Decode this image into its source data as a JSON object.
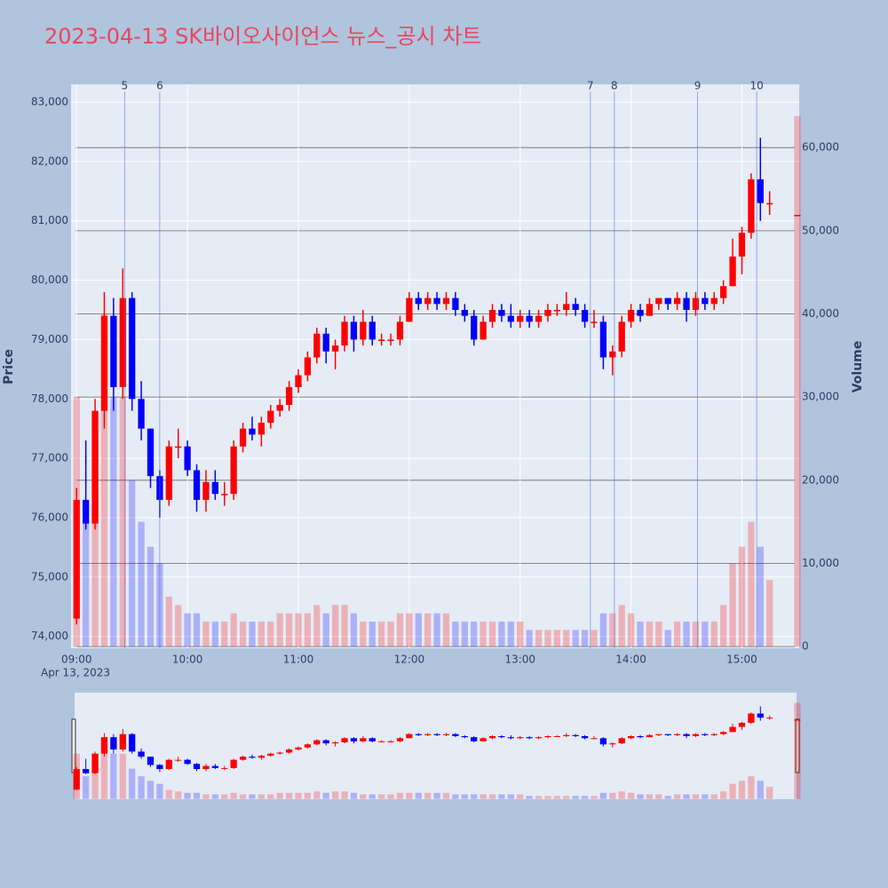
{
  "chart_data": {
    "type": "candlestick",
    "title": "2023-04-13 SK바이오사이언스 뉴스_공시 차트",
    "y_label": "Price",
    "y2_label": "Volume",
    "x_date_label": "Apr 13, 2023",
    "up_color": "#ff0000",
    "down_color": "#0000ff",
    "xlim": [
      "2023-04-13 08:57",
      "2023-04-13 15:31"
    ],
    "xticks": [
      {
        "value": "2023-04-13 09:00",
        "label": "09:00"
      },
      {
        "value": "2023-04-13 10:00",
        "label": "10:00"
      },
      {
        "value": "2023-04-13 11:00",
        "label": "11:00"
      },
      {
        "value": "2023-04-13 12:00",
        "label": "12:00"
      },
      {
        "value": "2023-04-13 13:00",
        "label": "13:00"
      },
      {
        "value": "2023-04-13 14:00",
        "label": "14:00"
      },
      {
        "value": "2023-04-13 15:00",
        "label": "15:00"
      }
    ],
    "ylim": [
      73800,
      83300
    ],
    "yticks": [
      {
        "value": 74000,
        "label": "74,000"
      },
      {
        "value": 75000,
        "label": "75,000"
      },
      {
        "value": 76000,
        "label": "76,000"
      },
      {
        "value": 77000,
        "label": "77,000"
      },
      {
        "value": 78000,
        "label": "78,000"
      },
      {
        "value": 79000,
        "label": "79,000"
      },
      {
        "value": 80000,
        "label": "80,000"
      },
      {
        "value": 81000,
        "label": "81,000"
      },
      {
        "value": 82000,
        "label": "82,000"
      },
      {
        "value": 83000,
        "label": "83,000"
      }
    ],
    "y2lim": [
      -200,
      67600
    ],
    "y2ticks": [
      0,
      {
        "value": 10000,
        "label": "10,000"
      },
      {
        "value": 20000,
        "label": "20,000"
      },
      {
        "value": 30000,
        "label": "30,000"
      },
      {
        "value": 40000,
        "label": "40,000"
      },
      {
        "value": 50000,
        "label": "50,000"
      },
      {
        "value": 60000,
        "label": "60,000"
      }
    ],
    "markers": [
      {
        "label": "5",
        "x": "2023-04-13 09:26"
      },
      {
        "label": "6",
        "x": "2023-04-13 09:45"
      },
      {
        "label": "7",
        "x": "2023-04-13 13:38"
      },
      {
        "label": "8",
        "x": "2023-04-13 13:51"
      },
      {
        "label": "9",
        "x": "2023-04-13 14:36"
      },
      {
        "label": "10",
        "x": "2023-04-13 15:08"
      }
    ],
    "x": [
      "2023-04-13 09:00",
      "2023-04-13 09:05",
      "2023-04-13 09:10",
      "2023-04-13 09:15",
      "2023-04-13 09:20",
      "2023-04-13 09:25",
      "2023-04-13 09:30",
      "2023-04-13 09:35",
      "2023-04-13 09:40",
      "2023-04-13 09:45",
      "2023-04-13 09:50",
      "2023-04-13 09:55",
      "2023-04-13 10:00",
      "2023-04-13 10:05",
      "2023-04-13 10:10",
      "2023-04-13 10:15",
      "2023-04-13 10:20",
      "2023-04-13 10:25",
      "2023-04-13 10:30",
      "2023-04-13 10:35",
      "2023-04-13 10:40",
      "2023-04-13 10:45",
      "2023-04-13 10:50",
      "2023-04-13 10:55",
      "2023-04-13 11:00",
      "2023-04-13 11:05",
      "2023-04-13 11:10",
      "2023-04-13 11:15",
      "2023-04-13 11:20",
      "2023-04-13 11:25",
      "2023-04-13 11:30",
      "2023-04-13 11:35",
      "2023-04-13 11:40",
      "2023-04-13 11:45",
      "2023-04-13 11:50",
      "2023-04-13 11:55",
      "2023-04-13 12:00",
      "2023-04-13 12:05",
      "2023-04-13 12:10",
      "2023-04-13 12:15",
      "2023-04-13 12:20",
      "2023-04-13 12:25",
      "2023-04-13 12:30",
      "2023-04-13 12:35",
      "2023-04-13 12:40",
      "2023-04-13 12:45",
      "2023-04-13 12:50",
      "2023-04-13 12:55",
      "2023-04-13 13:00",
      "2023-04-13 13:05",
      "2023-04-13 13:10",
      "2023-04-13 13:15",
      "2023-04-13 13:20",
      "2023-04-13 13:25",
      "2023-04-13 13:30",
      "2023-04-13 13:35",
      "2023-04-13 13:40",
      "2023-04-13 13:45",
      "2023-04-13 13:50",
      "2023-04-13 13:55",
      "2023-04-13 14:00",
      "2023-04-13 14:05",
      "2023-04-13 14:10",
      "2023-04-13 14:15",
      "2023-04-13 14:20",
      "2023-04-13 14:25",
      "2023-04-13 14:30",
      "2023-04-13 14:35",
      "2023-04-13 14:40",
      "2023-04-13 14:45",
      "2023-04-13 14:50",
      "2023-04-13 14:55",
      "2023-04-13 15:00",
      "2023-04-13 15:05",
      "2023-04-13 15:10",
      "2023-04-13 15:15",
      "2023-04-13 15:30"
    ],
    "open": [
      74300,
      76300,
      75900,
      77800,
      79400,
      78200,
      79700,
      78000,
      77500,
      76700,
      76300,
      77200,
      77200,
      76800,
      76300,
      76600,
      76400,
      76400,
      77200,
      77500,
      77400,
      77600,
      77800,
      77900,
      78200,
      78400,
      78700,
      79100,
      78800,
      78900,
      79300,
      79000,
      79300,
      79000,
      79000,
      79000,
      79300,
      79700,
      79600,
      79700,
      79600,
      79700,
      79500,
      79400,
      79000,
      79300,
      79500,
      79400,
      79300,
      79400,
      79300,
      79400,
      79500,
      79500,
      79600,
      79500,
      79300,
      79300,
      78700,
      78800,
      79300,
      79500,
      79400,
      79600,
      79700,
      79600,
      79700,
      79500,
      79700,
      79600,
      79700,
      79900,
      80400,
      80800,
      81700,
      81300,
      81100
    ],
    "high": [
      76500,
      77300,
      78000,
      79800,
      79700,
      80200,
      79800,
      78300,
      77500,
      76800,
      77300,
      77500,
      77300,
      76900,
      76800,
      76800,
      76600,
      77300,
      77600,
      77700,
      77700,
      77900,
      78000,
      78300,
      78500,
      78800,
      79200,
      79200,
      79000,
      79400,
      79400,
      79500,
      79400,
      79100,
      79100,
      79400,
      79800,
      79800,
      79800,
      79800,
      79800,
      79800,
      79600,
      79500,
      79400,
      79600,
      79600,
      79600,
      79500,
      79500,
      79500,
      79600,
      79600,
      79800,
      79700,
      79600,
      79500,
      79400,
      78900,
      79400,
      79600,
      79600,
      79700,
      79700,
      79700,
      79800,
      79800,
      79800,
      79800,
      79800,
      80000,
      80700,
      80900,
      81800,
      82400,
      81500,
      81100
    ],
    "low": [
      74200,
      75800,
      75800,
      77500,
      77800,
      78000,
      77800,
      77300,
      76500,
      76000,
      76200,
      77000,
      76700,
      76100,
      76100,
      76300,
      76200,
      76300,
      77100,
      77300,
      77200,
      77500,
      77700,
      77800,
      78100,
      78300,
      78600,
      78600,
      78500,
      78800,
      78800,
      78900,
      78900,
      78900,
      78900,
      78900,
      79300,
      79500,
      79500,
      79500,
      79500,
      79400,
      79300,
      78900,
      79000,
      79200,
      79300,
      79200,
      79200,
      79200,
      79200,
      79300,
      79400,
      79400,
      79400,
      79200,
      79200,
      78500,
      78400,
      78700,
      79200,
      79300,
      79400,
      79500,
      79500,
      79500,
      79300,
      79400,
      79500,
      79500,
      79600,
      79900,
      80100,
      80700,
      81000,
      81100,
      81100
    ],
    "close": [
      76300,
      75900,
      77800,
      79400,
      78200,
      79700,
      78000,
      77500,
      76700,
      76300,
      77200,
      77200,
      76800,
      76300,
      76600,
      76400,
      76400,
      77200,
      77500,
      77400,
      77600,
      77800,
      77900,
      78200,
      78400,
      78700,
      79100,
      78800,
      78900,
      79300,
      79000,
      79300,
      79000,
      79000,
      79000,
      79300,
      79700,
      79600,
      79700,
      79600,
      79700,
      79500,
      79400,
      79000,
      79300,
      79500,
      79400,
      79300,
      79400,
      79300,
      79400,
      79500,
      79500,
      79600,
      79500,
      79300,
      79300,
      78700,
      78800,
      79300,
      79500,
      79400,
      79600,
      79700,
      79600,
      79700,
      79500,
      79700,
      79600,
      79700,
      79900,
      80400,
      80800,
      81700,
      81300,
      81300,
      81100
    ],
    "volume": [
      30000,
      15000,
      25000,
      40000,
      30000,
      30000,
      20000,
      15000,
      12000,
      10000,
      6000,
      5000,
      4000,
      4000,
      3000,
      3000,
      3000,
      4000,
      3000,
      3000,
      3000,
      3000,
      4000,
      4000,
      4000,
      4000,
      5000,
      4000,
      5000,
      5000,
      4000,
      3000,
      3000,
      3000,
      3000,
      4000,
      4000,
      4000,
      4000,
      4000,
      4000,
      3000,
      3000,
      3000,
      3000,
      3000,
      3000,
      3000,
      3000,
      2000,
      2000,
      2000,
      2000,
      2000,
      2000,
      2000,
      2000,
      4000,
      4000,
      5000,
      4000,
      3000,
      3000,
      3000,
      2000,
      3000,
      3000,
      3000,
      3000,
      3000,
      5000,
      10000,
      12000,
      15000,
      12000,
      8000,
      63800
    ]
  }
}
